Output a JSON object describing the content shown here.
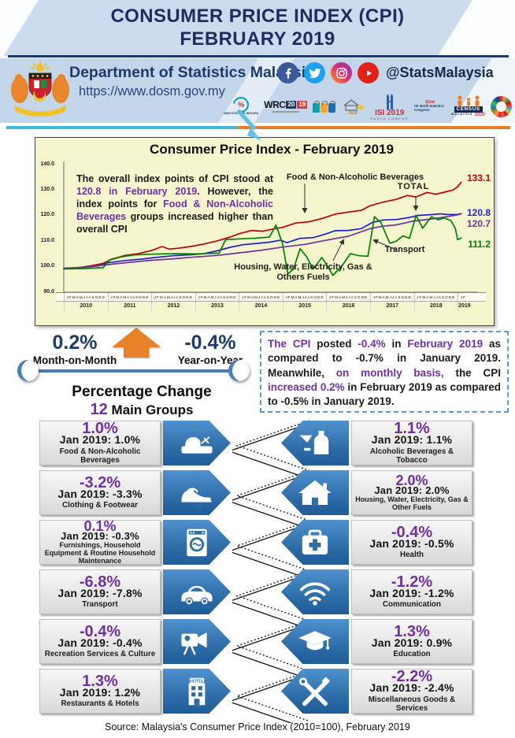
{
  "colors": {
    "accent_purple": "#7030a0",
    "navy": "#1e3a6e",
    "chart_bg": "#f6f6ce",
    "food": "#c00000",
    "total": "#1f1fd4",
    "housing": "#7030a0",
    "transport": "#008000",
    "pentagon_blue": "#2e6da8",
    "arrow_orange": "#e88228",
    "divider_cyan": "#45b6dd",
    "divider_orange": "#e87c26"
  },
  "header": {
    "title_line1": "CONSUMER PRICE INDEX (CPI)",
    "title_line2": "FEBRUARY 2019",
    "dept_name": "Department of Statistics Malaysia",
    "website": "https://www.dosm.gov.my",
    "social_handle": "@StatsMalaysia",
    "logos": {
      "hari_label": "HARI STATISTIK NEGARA",
      "hari_pct": "%",
      "wrc": "WRC",
      "wrc_y1": "20",
      "wrc_y2": "19",
      "fies_year": "2019",
      "isi": "ISI 2019",
      "isi_city": "KUALA LUMPUR",
      "wsc_line1": "62nd",
      "wsc_line2": "ISI World Statistics Congress",
      "census": "CENSUS",
      "census_country": "MALAYSIA",
      "census_year": "2020"
    }
  },
  "chart": {
    "title": "Consumer Price Index - February 2019",
    "annotation": [
      {
        "t": "The overall index points of CPI stood at ",
        "c": "k"
      },
      {
        "t": "120.8 in February 2019",
        "c": "p"
      },
      {
        "t": ". However,  the index points for ",
        "c": "k"
      },
      {
        "t": "Food & Non-Alcoholic Beverages",
        "c": "p"
      },
      {
        "t": " groups increased higher than overall CPI",
        "c": "k"
      }
    ],
    "series_labels": {
      "food": "Food & Non-Alcoholic Beverages",
      "total": "TOTAL",
      "housing_line1": "Housing, Water, Electricity, Gas &",
      "housing_line2": "Others Fuels",
      "transport": "Transport"
    },
    "end_values": {
      "food": "133.1",
      "total": "120.8",
      "housing": "120.7",
      "transport": "111.2"
    }
  },
  "chart_data": {
    "type": "line",
    "title": "Consumer Price Index - February 2019",
    "x_unit": "year (monthly points, Jan 2010 - Feb 2019)",
    "x_range": [
      2010,
      2019.25
    ],
    "ylim": [
      90,
      140
    ],
    "yticks": [
      90,
      100,
      110,
      120,
      130,
      140
    ],
    "x_axis_months": "JFMAMJJASOND",
    "x_axis_months_final": "JF",
    "x_axis_years": [
      "2010",
      "2011",
      "2012",
      "2013",
      "2014",
      "2015",
      "2016",
      "2017",
      "2018",
      "2019"
    ],
    "legend_position": "inline-annotations",
    "grid": false,
    "series": [
      {
        "name": "Food & Non-Alcoholic Beverages",
        "color": "#c00000",
        "end_label": 133.1,
        "points": [
          [
            2010.0,
            99.2
          ],
          [
            2010.3,
            99.5
          ],
          [
            2010.6,
            100.3
          ],
          [
            2010.9,
            101.3
          ],
          [
            2011.1,
            103.0
          ],
          [
            2011.4,
            104.4
          ],
          [
            2011.7,
            105.1
          ],
          [
            2012.0,
            106.3
          ],
          [
            2012.25,
            107.9
          ],
          [
            2012.4,
            106.9
          ],
          [
            2012.6,
            107.2
          ],
          [
            2012.9,
            107.9
          ],
          [
            2013.2,
            108.9
          ],
          [
            2013.5,
            110.1
          ],
          [
            2013.8,
            111.6
          ],
          [
            2014.0,
            112.9
          ],
          [
            2014.3,
            114.2
          ],
          [
            2014.55,
            113.9
          ],
          [
            2014.8,
            114.8
          ],
          [
            2015.0,
            115.4
          ],
          [
            2015.3,
            117.1
          ],
          [
            2015.6,
            117.6
          ],
          [
            2015.9,
            118.9
          ],
          [
            2016.2,
            120.6
          ],
          [
            2016.5,
            121.4
          ],
          [
            2016.8,
            122.1
          ],
          [
            2017.0,
            123.9
          ],
          [
            2017.3,
            125.3
          ],
          [
            2017.6,
            126.4
          ],
          [
            2017.85,
            127.9
          ],
          [
            2018.05,
            127.3
          ],
          [
            2018.3,
            129.1
          ],
          [
            2018.5,
            128.4
          ],
          [
            2018.7,
            129.2
          ],
          [
            2018.9,
            130.1
          ],
          [
            2019.0,
            131.3
          ],
          [
            2019.08,
            133.1
          ]
        ]
      },
      {
        "name": "TOTAL",
        "color": "#1f1fd4",
        "end_label": 120.8,
        "points": [
          [
            2010.0,
            99.3
          ],
          [
            2010.4,
            99.7
          ],
          [
            2010.8,
            100.3
          ],
          [
            2011.0,
            101.5
          ],
          [
            2011.4,
            102.4
          ],
          [
            2011.8,
            103.0
          ],
          [
            2012.1,
            103.6
          ],
          [
            2012.5,
            104.3
          ],
          [
            2012.9,
            104.7
          ],
          [
            2013.2,
            105.1
          ],
          [
            2013.5,
            106.2
          ],
          [
            2013.8,
            107.6
          ],
          [
            2014.1,
            108.6
          ],
          [
            2014.4,
            109.1
          ],
          [
            2014.7,
            109.6
          ],
          [
            2014.95,
            110.4
          ],
          [
            2015.1,
            109.4
          ],
          [
            2015.4,
            111.1
          ],
          [
            2015.7,
            111.4
          ],
          [
            2016.0,
            112.9
          ],
          [
            2016.2,
            114.1
          ],
          [
            2016.5,
            114.2
          ],
          [
            2016.8,
            114.9
          ],
          [
            2017.05,
            117.3
          ],
          [
            2017.3,
            118.3
          ],
          [
            2017.6,
            118.5
          ],
          [
            2017.9,
            119.3
          ],
          [
            2018.1,
            120.1
          ],
          [
            2018.4,
            120.4
          ],
          [
            2018.6,
            120.7
          ],
          [
            2018.8,
            120.4
          ],
          [
            2019.0,
            120.5
          ],
          [
            2019.08,
            120.8
          ]
        ]
      },
      {
        "name": "Housing, Water, Electricity, Gas & Others Fuels",
        "color": "#7030a0",
        "end_label": 120.7,
        "points": [
          [
            2010.0,
            99.4
          ],
          [
            2010.5,
            99.8
          ],
          [
            2011.0,
            100.8
          ],
          [
            2011.5,
            101.7
          ],
          [
            2012.0,
            102.5
          ],
          [
            2012.5,
            103.1
          ],
          [
            2013.0,
            103.8
          ],
          [
            2013.5,
            104.4
          ],
          [
            2014.0,
            105.4
          ],
          [
            2014.5,
            106.4
          ],
          [
            2015.0,
            107.7
          ],
          [
            2015.5,
            108.7
          ],
          [
            2016.0,
            110.4
          ],
          [
            2016.5,
            111.9
          ],
          [
            2017.0,
            114.9
          ],
          [
            2017.3,
            115.9
          ],
          [
            2017.6,
            116.4
          ],
          [
            2018.0,
            117.9
          ],
          [
            2018.4,
            118.7
          ],
          [
            2018.8,
            119.7
          ],
          [
            2019.0,
            120.3
          ],
          [
            2019.08,
            120.7
          ]
        ]
      },
      {
        "name": "Transport",
        "color": "#008000",
        "end_label": 111.2,
        "points": [
          [
            2010.0,
            99.1
          ],
          [
            2010.5,
            99.3
          ],
          [
            2010.9,
            99.6
          ],
          [
            2011.05,
            102.6
          ],
          [
            2011.3,
            103.8
          ],
          [
            2011.6,
            104.6
          ],
          [
            2012.0,
            104.9
          ],
          [
            2012.5,
            105.1
          ],
          [
            2013.0,
            105.0
          ],
          [
            2013.55,
            105.3
          ],
          [
            2013.7,
            110.6
          ],
          [
            2014.0,
            110.9
          ],
          [
            2014.4,
            111.2
          ],
          [
            2014.7,
            111.6
          ],
          [
            2014.85,
            116.3
          ],
          [
            2015.0,
            109.0
          ],
          [
            2015.12,
            97.2
          ],
          [
            2015.25,
            99.0
          ],
          [
            2015.4,
            107.1
          ],
          [
            2015.55,
            103.9
          ],
          [
            2015.7,
            99.1
          ],
          [
            2015.9,
            103.6
          ],
          [
            2016.05,
            99.5
          ],
          [
            2016.15,
            96.6
          ],
          [
            2016.35,
            100.2
          ],
          [
            2016.55,
            105.1
          ],
          [
            2016.75,
            104.3
          ],
          [
            2016.95,
            104.1
          ],
          [
            2017.1,
            119.6
          ],
          [
            2017.25,
            117.2
          ],
          [
            2017.45,
            109.2
          ],
          [
            2017.6,
            110.0
          ],
          [
            2017.75,
            112.1
          ],
          [
            2017.9,
            111.1
          ],
          [
            2018.05,
            120.1
          ],
          [
            2018.2,
            115.1
          ],
          [
            2018.4,
            119.6
          ],
          [
            2018.55,
            118.4
          ],
          [
            2018.7,
            119.1
          ],
          [
            2018.85,
            118.0
          ],
          [
            2018.95,
            114.9
          ],
          [
            2019.0,
            110.6
          ],
          [
            2019.08,
            111.2
          ]
        ]
      }
    ]
  },
  "momyoy": {
    "mom_value": "0.2%",
    "mom_label": "Month-on-Month",
    "yoy_value": "-0.4%",
    "yoy_label": "Year-on-Year"
  },
  "section": {
    "pct_title": "Percentage Change",
    "groups_num": "12",
    "groups_rest": " Main Groups"
  },
  "cpi_box": [
    {
      "t": "The CPI ",
      "c": "p"
    },
    {
      "t": "posted ",
      "c": "k"
    },
    {
      "t": "-0.4%",
      "c": "p"
    },
    {
      "t": " in ",
      "c": "k"
    },
    {
      "t": "February 2019",
      "c": "p"
    },
    {
      "t": " as compared to -0.7% in January 2019. Meanwhile, ",
      "c": "k"
    },
    {
      "t": "on monthly basis,",
      "c": "p"
    },
    {
      "t": " the CPI ",
      "c": "k"
    },
    {
      "t": "increased 0.2%",
      "c": "p"
    },
    {
      "t": " in February 2019 as compared to -0.5% in January 2019.",
      "c": "k"
    }
  ],
  "groups": {
    "hotel_sign_text": "HOTEL",
    "rows": [
      {
        "left": {
          "value": "1.0%",
          "jan": "Jan 2019: 1.0%",
          "name": "Food & Non-Alcoholic Beverages",
          "icon": "bread-icon"
        },
        "right": {
          "value": "1.1%",
          "jan": "Jan 2019: 1.1%",
          "name": "Alcoholic Beverages & Tobacco",
          "icon": "drinks-icon"
        }
      },
      {
        "left": {
          "value": "-3.2%",
          "jan": "Jan 2019: -3.3%",
          "name": "Clothing & Footwear",
          "icon": "shoe-icon"
        },
        "right": {
          "value": "2.0%",
          "jan": "Jan 2019: 2.0%",
          "name": "Housing, Water, Electricity, Gas & Other Fuels",
          "icon": "house-icon"
        }
      },
      {
        "left": {
          "value": "0.1%",
          "jan": "Jan 2019: -0.3%",
          "name": "Furnishings, Household Equipment & Routine Household Maintenance",
          "icon": "washing-machine-icon"
        },
        "right": {
          "value": "-0.4%",
          "jan": "Jan 2019: -0.5%",
          "name": "Health",
          "icon": "medical-bag-icon"
        }
      },
      {
        "left": {
          "value": "-6.8%",
          "jan": "Jan 2019: -7.8%",
          "name": "Transport",
          "icon": "car-icon"
        },
        "right": {
          "value": "-1.2%",
          "jan": "Jan 2019: -1.2%",
          "name": "Communication",
          "icon": "wifi-icon"
        }
      },
      {
        "left": {
          "value": "-0.4%",
          "jan": "Jan 2019: -0.4%",
          "name": "Recreation Services & Culture",
          "icon": "video-camera-icon"
        },
        "right": {
          "value": "1.3%",
          "jan": "Jan 2019: 0.9%",
          "name": "Education",
          "icon": "graduation-cap-icon"
        }
      },
      {
        "left": {
          "value": "1.3%",
          "jan": "Jan 2019: 1.2%",
          "name": "Restaurants & Hotels",
          "icon": "hotel-icon"
        },
        "right": {
          "value": "-2.2%",
          "jan": "Jan 2019: -2.4%",
          "name": "Miscellaneous Goods & Services",
          "icon": "tools-icon"
        }
      }
    ]
  },
  "footer": {
    "source": "Source: Malaysia's Consumer Price Index (2010=100),  February  2019"
  }
}
